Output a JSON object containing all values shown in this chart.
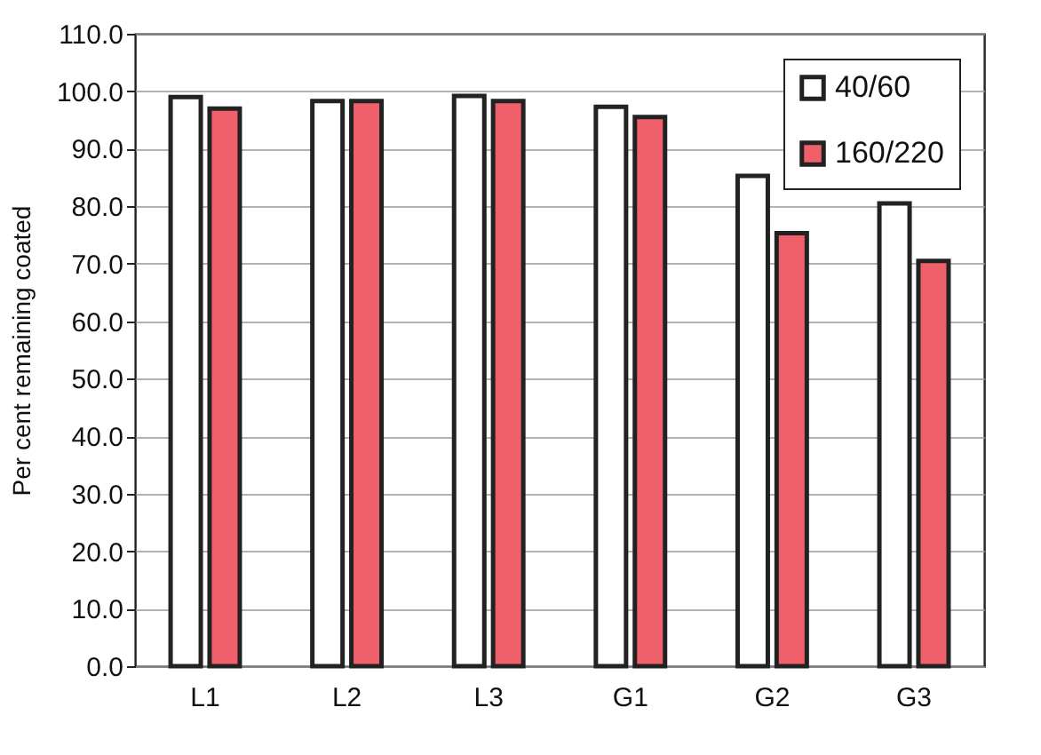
{
  "chart_data": {
    "type": "bar",
    "ylabel": "Per cent remaining coated",
    "categories": [
      "L1",
      "L2",
      "L3",
      "G1",
      "G2",
      "G3"
    ],
    "series": [
      {
        "name": "40/60",
        "color": "#ffffff",
        "values": [
          99.0,
          98.3,
          99.2,
          97.3,
          85.3,
          80.5
        ]
      },
      {
        "name": "160/220",
        "color": "#f0606a",
        "values": [
          97.0,
          98.3,
          98.3,
          95.5,
          75.3,
          70.5
        ]
      }
    ],
    "ylim": [
      0,
      110
    ],
    "yticks": [
      {
        "value": 0,
        "label": "0.0"
      },
      {
        "value": 10,
        "label": "10.0"
      },
      {
        "value": 20,
        "label": "20.0"
      },
      {
        "value": 30,
        "label": "30.0"
      },
      {
        "value": 40,
        "label": "40.0"
      },
      {
        "value": 50,
        "label": "50.0"
      },
      {
        "value": 60,
        "label": "60.0"
      },
      {
        "value": 70,
        "label": "70.0"
      },
      {
        "value": 80,
        "label": "80.0"
      },
      {
        "value": 90,
        "label": "90.0"
      },
      {
        "value": 100,
        "label": "100.0"
      },
      {
        "value": 110,
        "label": "110.0"
      }
    ],
    "grid": "y",
    "legend": "top right"
  }
}
